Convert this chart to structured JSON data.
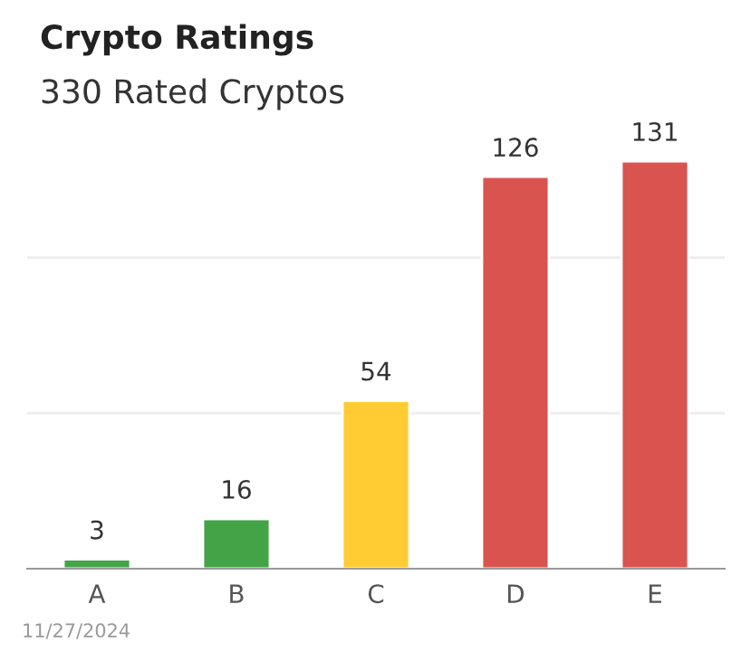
{
  "chart_data": {
    "type": "bar",
    "title": "Crypto Ratings",
    "subtitle": "330 Rated Cryptos",
    "categories": [
      "A",
      "B",
      "C",
      "D",
      "E"
    ],
    "values": [
      3,
      16,
      54,
      126,
      131
    ],
    "colors": [
      "#43a447",
      "#43a447",
      "#ffcc33",
      "#d9534f",
      "#d9534f"
    ],
    "ref_lines": [
      {
        "axis": "y",
        "value": 50,
        "color": "#eeeeee"
      },
      {
        "axis": "y",
        "value": 100,
        "color": "#eeeeee"
      }
    ],
    "tick_labels": "x",
    "data_labels": true,
    "annotations": [
      "11/27/2024"
    ]
  }
}
